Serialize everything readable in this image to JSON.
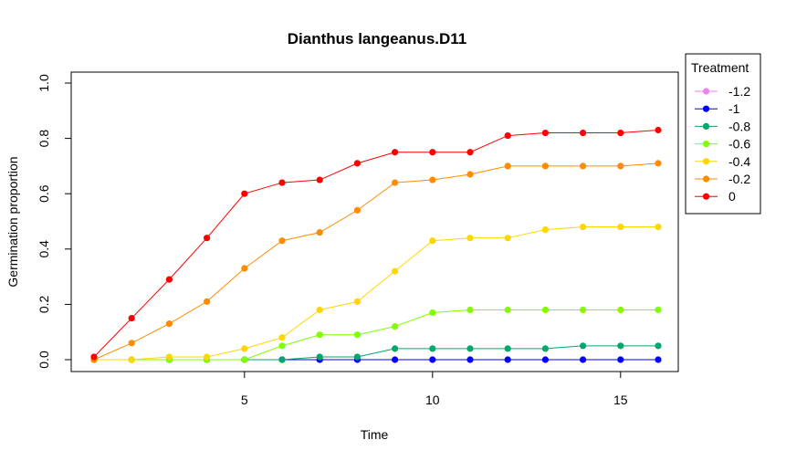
{
  "chart_data": {
    "type": "line",
    "title": "Dianthus langeanus.D11",
    "xlabel": "Time",
    "ylabel": "Germination proportion",
    "xlim": [
      1,
      16
    ],
    "ylim": [
      0,
      1
    ],
    "x_ticks": [
      5,
      10,
      15
    ],
    "y_ticks": [
      0.0,
      0.2,
      0.4,
      0.6,
      0.8,
      1.0
    ],
    "y_tick_labels": [
      "0.0",
      "0.2",
      "0.4",
      "0.6",
      "0.8",
      "1.0"
    ],
    "x": [
      1,
      2,
      3,
      4,
      5,
      6,
      7,
      8,
      9,
      10,
      11,
      12,
      13,
      14,
      15,
      16
    ],
    "grid": false,
    "legend": {
      "title": "Treatment",
      "position": "top-right-outside"
    },
    "series": [
      {
        "name": "-1.2",
        "color": "#EE82EE",
        "values": [
          0,
          0,
          0,
          0,
          0,
          0,
          0,
          0,
          0,
          0,
          0,
          0,
          0,
          0,
          0,
          0
        ]
      },
      {
        "name": "-1",
        "color": "#0000FF",
        "values": [
          0,
          0,
          0,
          0,
          0,
          0,
          0,
          0,
          0,
          0,
          0,
          0,
          0,
          0,
          0,
          0
        ]
      },
      {
        "name": "-0.8",
        "color": "#00A86B",
        "values": [
          0,
          0,
          0,
          0,
          0,
          0,
          0.01,
          0.01,
          0.04,
          0.04,
          0.04,
          0.04,
          0.04,
          0.05,
          0.05,
          0.05
        ]
      },
      {
        "name": "-0.6",
        "color": "#7FFF00",
        "values": [
          0,
          0,
          0,
          0,
          0,
          0.05,
          0.09,
          0.09,
          0.12,
          0.17,
          0.18,
          0.18,
          0.18,
          0.18,
          0.18,
          0.18
        ]
      },
      {
        "name": "-0.4",
        "color": "#FFD700",
        "values": [
          0,
          0,
          0.01,
          0.01,
          0.04,
          0.08,
          0.18,
          0.21,
          0.32,
          0.43,
          0.44,
          0.44,
          0.47,
          0.48,
          0.48,
          0.48
        ]
      },
      {
        "name": "-0.2",
        "color": "#FF8C00",
        "values": [
          0,
          0.06,
          0.13,
          0.21,
          0.33,
          0.43,
          0.46,
          0.54,
          0.64,
          0.65,
          0.67,
          0.7,
          0.7,
          0.7,
          0.7,
          0.71
        ]
      },
      {
        "name": "0",
        "color": "#FF0000",
        "values": [
          0.01,
          0.15,
          0.29,
          0.44,
          0.6,
          0.64,
          0.65,
          0.71,
          0.75,
          0.75,
          0.75,
          0.81,
          0.82,
          0.82,
          0.82,
          0.83
        ]
      }
    ]
  }
}
